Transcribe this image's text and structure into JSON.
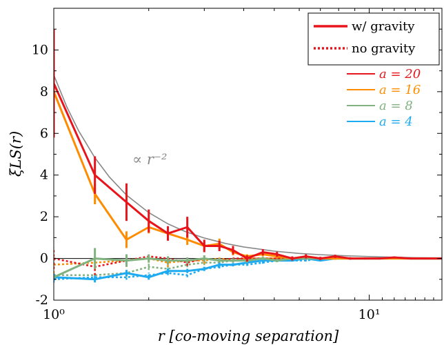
{
  "chart_data": {
    "type": "line",
    "title": "",
    "xlabel": "r [co-moving separation]",
    "ylabel": "ξLS(r)",
    "xscale": "log",
    "xlim": [
      1,
      17
    ],
    "ylim": [
      -2,
      12
    ],
    "x_ticks": [
      {
        "value": 1,
        "label": "10⁰"
      },
      {
        "value": 10,
        "label": "10¹"
      }
    ],
    "y_ticks": [
      {
        "value": -2,
        "label": "-2"
      },
      {
        "value": 0,
        "label": "0"
      },
      {
        "value": 2,
        "label": "2"
      },
      {
        "value": 4,
        "label": "4"
      },
      {
        "value": 6,
        "label": "6"
      },
      {
        "value": 8,
        "label": "8"
      },
      {
        "value": 10,
        "label": "10"
      }
    ],
    "grid": false,
    "zero_line": true,
    "legend_style": {
      "position": "top-right",
      "entries": [
        {
          "label": "w/ gravity",
          "dash": "solid"
        },
        {
          "label": "no gravity",
          "dash": "dotted"
        }
      ]
    },
    "legend_series": {
      "position": "top-right",
      "entries": [
        {
          "label": "a = 20",
          "color": "#e8141b"
        },
        {
          "label": "a = 16",
          "color": "#ff8c00"
        },
        {
          "label": "a = 8",
          "color": "#7fb27f"
        },
        {
          "label": "a = 4",
          "color": "#1eaaf0"
        }
      ]
    },
    "annotation": {
      "text": "∝ r⁻²",
      "color": "#888888"
    },
    "reference_curve": {
      "color": "#888888",
      "x": [
        1,
        1.1,
        1.2,
        1.35,
        1.5,
        1.7,
        2,
        2.3,
        2.6,
        3,
        3.5,
        4,
        5,
        6,
        7,
        8,
        10,
        12,
        14,
        17
      ],
      "y": [
        8.8,
        7.27,
        6.11,
        4.83,
        3.91,
        3.04,
        2.2,
        1.66,
        1.3,
        0.98,
        0.72,
        0.55,
        0.35,
        0.24,
        0.18,
        0.14,
        0.09,
        0.06,
        0.04,
        0.03
      ]
    },
    "series": [
      {
        "label": "a = 20",
        "gravity": true,
        "color": "#e8141b",
        "x": [
          1,
          1.35,
          1.7,
          2,
          2.3,
          2.65,
          3,
          3.35,
          3.7,
          4.1,
          4.6,
          5.1,
          5.7,
          6.3,
          7,
          7.8,
          8.7,
          9.7,
          10.8,
          12,
          13.5,
          15,
          17
        ],
        "y": [
          8.4,
          4.0,
          2.7,
          1.8,
          1.2,
          1.5,
          0.6,
          0.6,
          0.4,
          0.0,
          0.3,
          0.2,
          0.0,
          0.1,
          0.0,
          0.1,
          0.0,
          0.0,
          0.0,
          0.05,
          0.0,
          0.0,
          0.0
        ],
        "err": [
          2.6,
          0.9,
          0.9,
          0.55,
          0.35,
          0.5,
          0.3,
          0.25,
          0.2,
          0.15,
          0.15,
          0.12,
          0.1,
          0.1,
          0.08,
          0.08,
          0.06,
          0.05,
          0.05,
          0.05,
          0.04,
          0.04,
          0.03
        ]
      },
      {
        "label": "a = 16",
        "gravity": true,
        "color": "#ff8c00",
        "x": [
          1,
          1.35,
          1.7,
          2,
          2.3,
          2.65,
          3,
          3.35,
          3.7,
          4.1,
          4.6,
          5.1,
          5.7,
          6.3,
          7,
          7.8,
          8.7,
          9.7,
          10.8,
          12,
          13.5,
          15,
          17
        ],
        "y": [
          8.0,
          3.1,
          0.9,
          1.5,
          1.2,
          0.9,
          0.6,
          0.7,
          0.3,
          0.1,
          0.2,
          0.1,
          0.0,
          0.1,
          0.0,
          0.0,
          0.0,
          0.0,
          0.0,
          0.0,
          0.0,
          0.0,
          0.0
        ],
        "err": [
          0,
          0.5,
          0.4,
          0.3,
          0.25,
          0.25,
          0.2,
          0.25,
          0.15,
          0.1,
          0.1,
          0.1,
          0.08,
          0.08,
          0.06,
          0.06,
          0.05,
          0.05,
          0.04,
          0.04,
          0.03,
          0.03,
          0.03
        ]
      },
      {
        "label": "a = 8",
        "gravity": true,
        "color": "#7fb27f",
        "x": [
          1,
          1.35,
          1.7,
          2,
          2.3,
          2.65,
          3,
          3.35,
          3.7,
          4.1,
          4.6,
          5.1,
          5.7,
          6.3,
          7,
          7.8,
          8.7,
          9.7,
          10.8,
          12,
          13.5,
          15,
          17
        ],
        "y": [
          -0.9,
          0.0,
          -0.1,
          0.0,
          -0.1,
          -0.1,
          0.0,
          -0.1,
          -0.1,
          -0.1,
          0.0,
          -0.1,
          0.0,
          0.0,
          0.0,
          0.0,
          0.0,
          0.0,
          0.0,
          0.0,
          0.0,
          0.0,
          0.0
        ],
        "err": [
          0,
          0.5,
          0.3,
          0.2,
          0.2,
          0.15,
          0.15,
          0.1,
          0.1,
          0.1,
          0.08,
          0.08,
          0.06,
          0.06,
          0.05,
          0.05,
          0.04,
          0.04,
          0.03,
          0.03,
          0.03,
          0.02,
          0.02
        ]
      },
      {
        "label": "a = 4",
        "gravity": true,
        "color": "#1eaaf0",
        "x": [
          1,
          1.35,
          1.7,
          2,
          2.3,
          2.65,
          3,
          3.35,
          3.7,
          4.1,
          4.6,
          5.1,
          5.7,
          6.3,
          7,
          7.8,
          8.7,
          9.7,
          10.8,
          12,
          13.5,
          15,
          17
        ],
        "y": [
          -0.9,
          -1.0,
          -0.7,
          -0.9,
          -0.6,
          -0.6,
          -0.5,
          -0.3,
          -0.3,
          -0.2,
          -0.1,
          -0.1,
          -0.1,
          0.0,
          -0.1,
          0.0,
          0.0,
          0.0,
          0.0,
          0.05,
          0.0,
          0.0,
          0.0
        ],
        "err": [
          0.15,
          0.15,
          0.15,
          0.12,
          0.12,
          0.1,
          0.1,
          0.1,
          0.08,
          0.08,
          0.06,
          0.06,
          0.05,
          0.05,
          0.04,
          0.04,
          0.04,
          0.03,
          0.03,
          0.03,
          0.02,
          0.02,
          0.02
        ]
      },
      {
        "label": "a = 20",
        "gravity": false,
        "color": "#e8141b",
        "x": [
          1,
          1.35,
          1.7,
          2,
          2.3,
          2.65,
          3,
          3.35,
          3.7,
          4.1,
          4.6,
          5.1,
          5.7,
          6.3,
          7,
          7.8,
          8.7,
          9.7,
          10.8,
          12,
          13.5,
          15,
          17
        ],
        "y": [
          0.0,
          -0.4,
          -0.1,
          0.1,
          0.0,
          -0.2,
          0.0,
          -0.1,
          0.0,
          0.0,
          0.0,
          0.0,
          0.0,
          0.0,
          0.0,
          0.0,
          0.0,
          0.0,
          0.0,
          0.0,
          0.0,
          0.0,
          0.0
        ],
        "err": [
          0.5,
          0.4,
          0.3,
          0.2,
          0.2,
          0.15,
          0.15,
          0.1,
          0.1,
          0.1,
          0.08,
          0.08,
          0.06,
          0.06,
          0.05,
          0.05,
          0.04,
          0.04,
          0.03,
          0.03,
          0.03,
          0.02,
          0.02
        ]
      },
      {
        "label": "a = 16",
        "gravity": false,
        "color": "#ff8c00",
        "x": [
          1,
          1.35,
          1.7,
          2,
          2.3,
          2.65,
          3,
          3.35,
          3.7,
          4.1,
          4.6,
          5.1,
          5.7,
          6.3,
          7,
          7.8,
          8.7,
          9.7,
          10.8,
          12,
          13.5,
          15,
          17
        ],
        "y": [
          -0.3,
          -0.2,
          -0.1,
          0.0,
          -0.2,
          -0.1,
          -0.1,
          0.0,
          -0.1,
          0.0,
          0.0,
          0.0,
          0.0,
          0.0,
          0.0,
          0.0,
          0.0,
          0.0,
          0.0,
          0.0,
          0.0,
          0.0,
          0.0
        ],
        "err": [
          0.4,
          0.35,
          0.3,
          0.2,
          0.2,
          0.15,
          0.15,
          0.1,
          0.1,
          0.08,
          0.08,
          0.06,
          0.06,
          0.05,
          0.05,
          0.04,
          0.04,
          0.03,
          0.03,
          0.03,
          0.02,
          0.02,
          0.02
        ]
      },
      {
        "label": "a = 8",
        "gravity": false,
        "color": "#7fb27f",
        "x": [
          1,
          1.35,
          1.7,
          2,
          2.3,
          2.65,
          3,
          3.35,
          3.7,
          4.1,
          4.6,
          5.1,
          5.7,
          6.3,
          7,
          7.8,
          8.7,
          9.7,
          10.8,
          12,
          13.5,
          15,
          17
        ],
        "y": [
          -0.8,
          -0.8,
          -0.7,
          -0.4,
          -0.5,
          -0.3,
          -0.2,
          -0.2,
          -0.1,
          -0.1,
          0.0,
          -0.1,
          0.0,
          0.0,
          0.0,
          0.0,
          0.0,
          0.0,
          0.0,
          0.0,
          0.0,
          0.0,
          0.0
        ],
        "err": [
          0.2,
          0.2,
          0.2,
          0.15,
          0.15,
          0.12,
          0.12,
          0.1,
          0.1,
          0.08,
          0.08,
          0.06,
          0.06,
          0.05,
          0.05,
          0.04,
          0.04,
          0.03,
          0.03,
          0.03,
          0.02,
          0.02,
          0.02
        ]
      },
      {
        "label": "a = 4",
        "gravity": false,
        "color": "#1eaaf0",
        "x": [
          1,
          1.35,
          1.7,
          2,
          2.3,
          2.65,
          3,
          3.35,
          3.7,
          4.1,
          4.6,
          5.1,
          5.7,
          6.3,
          7,
          7.8,
          8.7,
          9.7,
          10.8,
          12,
          13.5,
          15,
          17
        ],
        "y": [
          -1.0,
          -0.9,
          -0.9,
          -0.8,
          -0.7,
          -0.8,
          -0.5,
          -0.4,
          -0.3,
          -0.3,
          -0.2,
          -0.1,
          -0.1,
          -0.1,
          0.0,
          0.0,
          0.0,
          0.0,
          0.0,
          0.0,
          0.0,
          0.0,
          0.0
        ],
        "err": [
          0.15,
          0.15,
          0.12,
          0.12,
          0.1,
          0.1,
          0.08,
          0.08,
          0.06,
          0.06,
          0.05,
          0.05,
          0.04,
          0.04,
          0.04,
          0.03,
          0.03,
          0.03,
          0.02,
          0.02,
          0.02,
          0.02,
          0.02
        ]
      }
    ]
  }
}
